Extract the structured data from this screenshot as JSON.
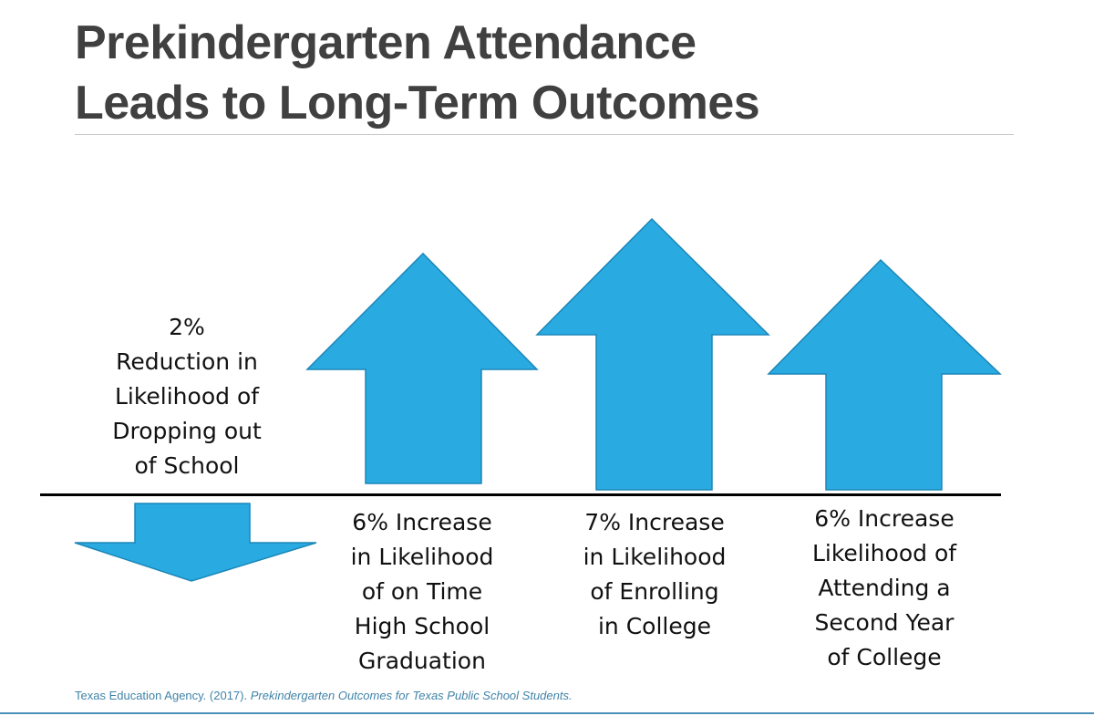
{
  "title": {
    "line1": "Prekindergarten Attendance",
    "line2": "Leads to Long-Term Outcomes"
  },
  "colors": {
    "arrow_fill": "#29abe2",
    "arrow_stroke": "#1b86b8",
    "title": "#404040",
    "citation": "#3f83a8"
  },
  "outcomes": [
    {
      "direction": "down",
      "percent": 2,
      "lines": [
        "2%",
        "Reduction in",
        "Likelihood of",
        "Dropping out",
        "of School"
      ]
    },
    {
      "direction": "up",
      "percent": 6,
      "lines": [
        "6% Increase",
        "in Likelihood",
        "of on Time",
        "High School",
        "Graduation"
      ]
    },
    {
      "direction": "up",
      "percent": 7,
      "lines": [
        "7% Increase",
        "in Likelihood",
        "of Enrolling",
        "in College"
      ]
    },
    {
      "direction": "up",
      "percent": 6,
      "lines": [
        "6% Increase",
        "Likelihood of",
        "Attending a",
        "Second Year",
        "of College"
      ]
    }
  ],
  "citation": {
    "source": "Texas Education Agency. (2017). ",
    "title": "Prekindergarten Outcomes for Texas Public School Students."
  }
}
